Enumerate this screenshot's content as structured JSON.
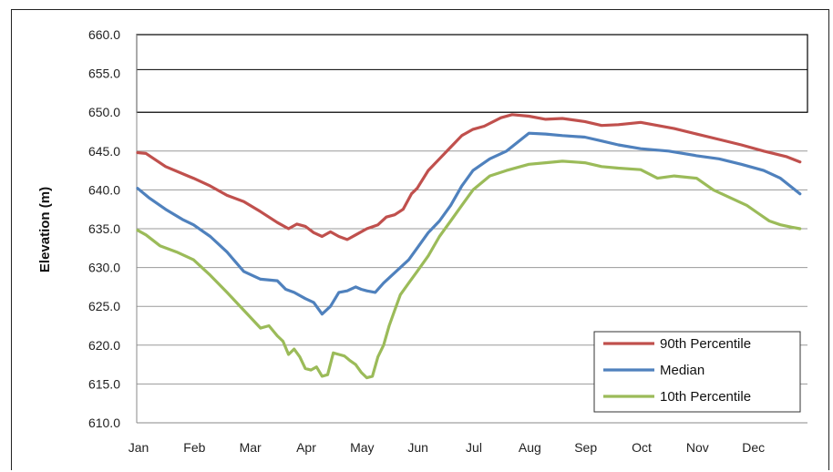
{
  "chart_data": {
    "type": "line",
    "title": "",
    "xlabel": "",
    "ylabel": "Elevation (m)",
    "ylim": [
      610,
      660
    ],
    "y_ticks": [
      "610.0",
      "615.0",
      "620.0",
      "625.0",
      "630.0",
      "635.0",
      "640.0",
      "645.0",
      "650.0",
      "655.0",
      "660.0"
    ],
    "x_ticks": [
      "Jan",
      "Feb",
      "Mar",
      "Apr",
      "May",
      "Jun",
      "Jul",
      "Aug",
      "Sep",
      "Oct",
      "Nov",
      "Dec"
    ],
    "xlim": [
      0,
      12
    ],
    "grid": "horizontal",
    "legend_position": "bottom-right",
    "annotation_box": {
      "y_range": [
        650,
        660
      ],
      "mid_line": 655.5
    },
    "colors": {
      "90th Percentile": "#c0504d",
      "Median": "#4f81bd",
      "10th Percentile": "#9bbb59"
    },
    "series": [
      {
        "name": "90th Percentile",
        "color": "#c0504d",
        "x": [
          0,
          0.15,
          0.5,
          0.9,
          1.0,
          1.3,
          1.6,
          1.9,
          2.2,
          2.5,
          2.7,
          2.85,
          3.0,
          3.15,
          3.3,
          3.45,
          3.6,
          3.75,
          3.9,
          4.1,
          4.3,
          4.45,
          4.6,
          4.75,
          4.9,
          5.0,
          5.2,
          5.4,
          5.6,
          5.8,
          6.0,
          6.2,
          6.5,
          6.7,
          7.0,
          7.3,
          7.6,
          8.0,
          8.3,
          8.6,
          9.0,
          9.3,
          9.6,
          10.0,
          10.4,
          10.8,
          11.2,
          11.6,
          11.85
        ],
        "y": [
          644.8,
          644.7,
          643.0,
          641.8,
          641.5,
          640.5,
          639.3,
          638.5,
          637.2,
          635.8,
          635.0,
          635.6,
          635.3,
          634.5,
          634.0,
          634.6,
          634.0,
          633.6,
          634.2,
          635.0,
          635.5,
          636.5,
          636.8,
          637.5,
          639.5,
          640.2,
          642.5,
          644.0,
          645.5,
          647.0,
          647.8,
          648.2,
          649.3,
          649.7,
          649.5,
          649.1,
          649.2,
          648.8,
          648.3,
          648.4,
          648.7,
          648.3,
          647.9,
          647.2,
          646.5,
          645.8,
          645.0,
          644.3,
          643.6
        ]
      },
      {
        "name": "Median",
        "color": "#4f81bd",
        "x": [
          0,
          0.2,
          0.5,
          0.8,
          1.0,
          1.3,
          1.6,
          1.9,
          2.2,
          2.5,
          2.65,
          2.8,
          3.0,
          3.15,
          3.3,
          3.45,
          3.6,
          3.75,
          3.9,
          4.0,
          4.1,
          4.25,
          4.4,
          4.55,
          4.7,
          4.85,
          5.0,
          5.2,
          5.4,
          5.6,
          5.8,
          6.0,
          6.3,
          6.6,
          7.0,
          7.3,
          7.6,
          8.0,
          8.3,
          8.6,
          9.0,
          9.5,
          10.0,
          10.4,
          10.8,
          11.2,
          11.5,
          11.85
        ],
        "y": [
          640.2,
          639.0,
          637.5,
          636.2,
          635.5,
          634.0,
          632.0,
          629.5,
          628.5,
          628.3,
          627.2,
          626.8,
          626.0,
          625.5,
          624.0,
          625.0,
          626.8,
          627.0,
          627.5,
          627.2,
          627.0,
          626.8,
          628.0,
          629.0,
          630.0,
          631.0,
          632.5,
          634.5,
          636.0,
          638.0,
          640.5,
          642.5,
          644.0,
          645.0,
          647.3,
          647.2,
          647.0,
          646.8,
          646.3,
          645.8,
          645.3,
          645.0,
          644.4,
          644.0,
          643.3,
          642.5,
          641.5,
          639.5
        ]
      },
      {
        "name": "10th Percentile",
        "color": "#9bbb59",
        "x": [
          0,
          0.15,
          0.4,
          0.7,
          1.0,
          1.3,
          1.6,
          1.9,
          2.2,
          2.35,
          2.5,
          2.6,
          2.7,
          2.8,
          2.9,
          3.0,
          3.1,
          3.2,
          3.3,
          3.4,
          3.5,
          3.6,
          3.7,
          3.8,
          3.9,
          4.0,
          4.1,
          4.2,
          4.3,
          4.4,
          4.5,
          4.6,
          4.7,
          4.85,
          5.0,
          5.2,
          5.4,
          5.6,
          5.8,
          6.0,
          6.3,
          6.6,
          7.0,
          7.3,
          7.6,
          8.0,
          8.3,
          8.6,
          9.0,
          9.3,
          9.6,
          10.0,
          10.3,
          10.6,
          10.9,
          11.1,
          11.3,
          11.5,
          11.7,
          11.85
        ],
        "y": [
          634.8,
          634.2,
          632.8,
          632.0,
          631.0,
          629.0,
          626.8,
          624.5,
          622.2,
          622.5,
          621.2,
          620.5,
          618.8,
          619.5,
          618.5,
          617.0,
          616.8,
          617.2,
          616.0,
          616.2,
          619.0,
          618.8,
          618.6,
          618.0,
          617.5,
          616.5,
          615.8,
          616.0,
          618.5,
          620.0,
          622.5,
          624.5,
          626.5,
          628.0,
          629.5,
          631.5,
          634.0,
          636.0,
          638.0,
          640.0,
          641.8,
          642.5,
          643.3,
          643.5,
          643.7,
          643.5,
          643.0,
          642.8,
          642.6,
          641.5,
          641.8,
          641.5,
          640.0,
          639.0,
          638.0,
          637.0,
          636.0,
          635.5,
          635.2,
          635.0
        ]
      }
    ]
  }
}
